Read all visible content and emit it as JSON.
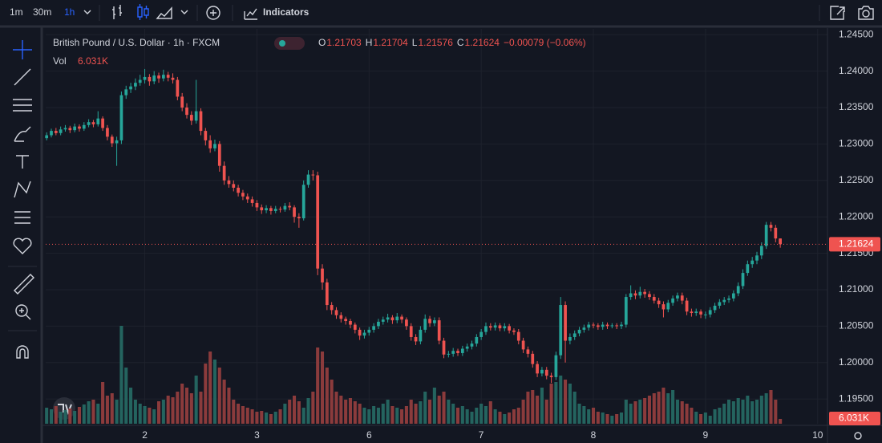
{
  "toolbar": {
    "intervals": [
      "1m",
      "30m",
      "1h"
    ],
    "indicators": "Indicators"
  },
  "chart_data": {
    "type": "candlestick",
    "title": "British Pound / U.S. Dollar · 1h · FXCM",
    "vol_label": "Vol",
    "volume_label": "6.031K",
    "ohlc_labels": [
      "O",
      "H",
      "L",
      "C"
    ],
    "change_label": "−0.00079 (−0.06%)",
    "up_color": "#26a69a",
    "down_color": "#ef5350",
    "volume_up_color": "#24645f",
    "volume_down_color": "#8b3b3c",
    "grid": true,
    "xlim": [
      -0.2,
      167.1
    ],
    "xticks": [
      {
        "value": 21,
        "label": "2"
      },
      {
        "value": 45,
        "label": "3"
      },
      {
        "value": 69,
        "label": "6"
      },
      {
        "value": 93,
        "label": "7"
      },
      {
        "value": 117,
        "label": "8"
      },
      {
        "value": 141,
        "label": "9"
      },
      {
        "value": 165,
        "label": "10"
      }
    ],
    "ylim": [
      1.1916,
      1.2458
    ],
    "yticks": [
      {
        "value": 1.245,
        "label": "1.24500"
      },
      {
        "value": 1.24,
        "label": "1.24000"
      },
      {
        "value": 1.235,
        "label": "1.23500"
      },
      {
        "value": 1.23,
        "label": "1.23000"
      },
      {
        "value": 1.225,
        "label": "1.22500"
      },
      {
        "value": 1.22,
        "label": "1.22000"
      },
      {
        "value": 1.215,
        "label": "1.21500"
      },
      {
        "value": 1.21,
        "label": "1.21000"
      },
      {
        "value": 1.205,
        "label": "1.20500"
      },
      {
        "value": 1.2,
        "label": "1.20000"
      },
      {
        "value": 1.195,
        "label": "1.19500"
      }
    ],
    "volume_ylim": [
      0,
      492000
    ],
    "candles": [
      [
        1.2308,
        1.2316,
        1.2305,
        1.2312
      ],
      [
        1.2312,
        1.2321,
        1.2309,
        1.2318
      ],
      [
        1.2318,
        1.2322,
        1.2312,
        1.2315
      ],
      [
        1.2315,
        1.2324,
        1.2312,
        1.232
      ],
      [
        1.232,
        1.2326,
        1.2317,
        1.2322
      ],
      [
        1.2322,
        1.2325,
        1.2315,
        1.2319
      ],
      [
        1.2319,
        1.2328,
        1.2316,
        1.2324
      ],
      [
        1.2324,
        1.2327,
        1.2317,
        1.2321
      ],
      [
        1.2321,
        1.233,
        1.2318,
        1.2326
      ],
      [
        1.2326,
        1.2334,
        1.2323,
        1.233
      ],
      [
        1.233,
        1.2333,
        1.2323,
        1.2327
      ],
      [
        1.2327,
        1.2345,
        1.2324,
        1.2335
      ],
      [
        1.2335,
        1.2338,
        1.2318,
        1.2322
      ],
      [
        1.2322,
        1.2326,
        1.2305,
        1.231
      ],
      [
        1.231,
        1.2313,
        1.2296,
        1.2301
      ],
      [
        1.2301,
        1.231,
        1.227,
        1.2305
      ],
      [
        1.2305,
        1.2372,
        1.23,
        1.2367
      ],
      [
        1.2367,
        1.238,
        1.2362,
        1.2375
      ],
      [
        1.2375,
        1.2384,
        1.237,
        1.2379
      ],
      [
        1.2379,
        1.239,
        1.2374,
        1.2384
      ],
      [
        1.2384,
        1.2395,
        1.238,
        1.2388
      ],
      [
        1.2388,
        1.2403,
        1.2383,
        1.2392
      ],
      [
        1.2392,
        1.2396,
        1.238,
        1.2386
      ],
      [
        1.2386,
        1.24,
        1.2382,
        1.2394
      ],
      [
        1.2394,
        1.2398,
        1.2384,
        1.239
      ],
      [
        1.239,
        1.2402,
        1.2386,
        1.2395
      ],
      [
        1.2395,
        1.2399,
        1.2386,
        1.2391
      ],
      [
        1.2391,
        1.2397,
        1.2383,
        1.2388
      ],
      [
        1.2388,
        1.2392,
        1.236,
        1.2365
      ],
      [
        1.2365,
        1.237,
        1.2345,
        1.235
      ],
      [
        1.235,
        1.2356,
        1.2335,
        1.234
      ],
      [
        1.234,
        1.2345,
        1.2326,
        1.2332
      ],
      [
        1.2332,
        1.2388,
        1.2328,
        1.2345
      ],
      [
        1.2345,
        1.2349,
        1.2312,
        1.2318
      ],
      [
        1.2318,
        1.2322,
        1.2298,
        1.2305
      ],
      [
        1.2305,
        1.2312,
        1.2288,
        1.2294
      ],
      [
        1.2294,
        1.2306,
        1.229,
        1.23
      ],
      [
        1.23,
        1.2304,
        1.2262,
        1.227
      ],
      [
        1.227,
        1.2276,
        1.2244,
        1.225
      ],
      [
        1.225,
        1.2256,
        1.224,
        1.2245
      ],
      [
        1.2245,
        1.225,
        1.2235,
        1.224
      ],
      [
        1.224,
        1.2244,
        1.2228,
        1.2233
      ],
      [
        1.2233,
        1.2237,
        1.2223,
        1.2228
      ],
      [
        1.2228,
        1.2232,
        1.2219,
        1.2224
      ],
      [
        1.2224,
        1.2228,
        1.2214,
        1.2219
      ],
      [
        1.2219,
        1.2223,
        1.2208,
        1.2213
      ],
      [
        1.2213,
        1.2217,
        1.2204,
        1.2209
      ],
      [
        1.2209,
        1.2216,
        1.2205,
        1.2212
      ],
      [
        1.2212,
        1.2215,
        1.2203,
        1.2208
      ],
      [
        1.2208,
        1.2215,
        1.2205,
        1.2211
      ],
      [
        1.2211,
        1.2214,
        1.2206,
        1.221
      ],
      [
        1.221,
        1.2219,
        1.2207,
        1.2215
      ],
      [
        1.2215,
        1.222,
        1.2209,
        1.2213
      ],
      [
        1.2213,
        1.2216,
        1.2192,
        1.22
      ],
      [
        1.22,
        1.2205,
        1.2185,
        1.2198
      ],
      [
        1.2198,
        1.225,
        1.2195,
        1.2244
      ],
      [
        1.2244,
        1.2264,
        1.224,
        1.2258
      ],
      [
        1.2258,
        1.2264,
        1.225,
        1.2257
      ],
      [
        1.2257,
        1.2262,
        1.212,
        1.2129
      ],
      [
        1.2129,
        1.2135,
        1.21,
        1.211
      ],
      [
        1.211,
        1.2115,
        1.2072,
        1.2079
      ],
      [
        1.2079,
        1.2083,
        1.2066,
        1.2072
      ],
      [
        1.2072,
        1.2076,
        1.206,
        1.2065
      ],
      [
        1.2065,
        1.2069,
        1.2055,
        1.206
      ],
      [
        1.206,
        1.2063,
        1.2052,
        1.2057
      ],
      [
        1.2057,
        1.206,
        1.2047,
        1.2052
      ],
      [
        1.2052,
        1.2055,
        1.204,
        1.2045
      ],
      [
        1.2045,
        1.2048,
        1.2031,
        1.2037
      ],
      [
        1.2037,
        1.2045,
        1.2033,
        1.2041
      ],
      [
        1.2041,
        1.2049,
        1.2037,
        1.2045
      ],
      [
        1.2045,
        1.2054,
        1.2041,
        1.205
      ],
      [
        1.205,
        1.206,
        1.2046,
        1.2056
      ],
      [
        1.2056,
        1.2063,
        1.2052,
        1.2059
      ],
      [
        1.2059,
        1.2067,
        1.2055,
        1.2062
      ],
      [
        1.2062,
        1.2065,
        1.2053,
        1.2058
      ],
      [
        1.2058,
        1.2068,
        1.2054,
        1.2063
      ],
      [
        1.2063,
        1.2066,
        1.2054,
        1.2059
      ],
      [
        1.2059,
        1.2062,
        1.2045,
        1.205
      ],
      [
        1.205,
        1.2054,
        1.203,
        1.2035
      ],
      [
        1.2035,
        1.2039,
        1.2024,
        1.2029
      ],
      [
        1.2029,
        1.205,
        1.2025,
        1.2045
      ],
      [
        1.2045,
        1.2066,
        1.2041,
        1.206
      ],
      [
        1.206,
        1.2064,
        1.2049,
        1.2054
      ],
      [
        1.2054,
        1.2062,
        1.205,
        1.2058
      ],
      [
        1.2058,
        1.2062,
        1.2025,
        1.203
      ],
      [
        1.203,
        1.2034,
        1.2006,
        1.2011
      ],
      [
        1.2011,
        1.2016,
        1.2007,
        1.2012
      ],
      [
        1.2012,
        1.202,
        1.2008,
        1.2016
      ],
      [
        1.2016,
        1.2019,
        1.2009,
        1.2013
      ],
      [
        1.2013,
        1.2023,
        1.2009,
        1.2019
      ],
      [
        1.2019,
        1.2026,
        1.2015,
        1.2022
      ],
      [
        1.2022,
        1.203,
        1.2018,
        1.2026
      ],
      [
        1.2026,
        1.2039,
        1.2022,
        1.2035
      ],
      [
        1.2035,
        1.2046,
        1.2031,
        1.2042
      ],
      [
        1.2042,
        1.2055,
        1.2038,
        1.205
      ],
      [
        1.205,
        1.2054,
        1.2044,
        1.2048
      ],
      [
        1.2048,
        1.2055,
        1.2044,
        1.2051
      ],
      [
        1.2051,
        1.2054,
        1.2043,
        1.2047
      ],
      [
        1.2047,
        1.2054,
        1.2043,
        1.205
      ],
      [
        1.205,
        1.2053,
        1.204,
        1.2044
      ],
      [
        1.2044,
        1.2047,
        1.2038,
        1.2042
      ],
      [
        1.2042,
        1.2046,
        1.2025,
        1.203
      ],
      [
        1.203,
        1.2034,
        1.2013,
        1.2018
      ],
      [
        1.2018,
        1.2022,
        1.2007,
        1.2012
      ],
      [
        1.2012,
        1.2016,
        1.1993,
        1.1998
      ],
      [
        1.1998,
        1.2002,
        1.198,
        1.1985
      ],
      [
        1.1985,
        1.1994,
        1.1981,
        1.199
      ],
      [
        1.199,
        1.1994,
        1.1977,
        1.1982
      ],
      [
        1.1982,
        1.1986,
        1.1972,
        1.198
      ],
      [
        1.198,
        1.2015,
        1.1976,
        1.201
      ],
      [
        1.201,
        1.209,
        1.2005,
        1.2079
      ],
      [
        1.2079,
        1.2084,
        1.2,
        1.203
      ],
      [
        1.203,
        1.204,
        1.2025,
        1.2035
      ],
      [
        1.2035,
        1.2044,
        1.2031,
        1.204
      ],
      [
        1.204,
        1.2049,
        1.2036,
        1.2045
      ],
      [
        1.2045,
        1.2052,
        1.2041,
        1.2048
      ],
      [
        1.2048,
        1.2056,
        1.2044,
        1.2052
      ],
      [
        1.2052,
        1.2055,
        1.2047,
        1.2051
      ],
      [
        1.2051,
        1.2054,
        1.2045,
        1.2049
      ],
      [
        1.2049,
        1.2056,
        1.2045,
        1.2052
      ],
      [
        1.2052,
        1.2055,
        1.2046,
        1.205
      ],
      [
        1.205,
        1.2054,
        1.2047,
        1.2051
      ],
      [
        1.2051,
        1.2054,
        1.2046,
        1.205
      ],
      [
        1.205,
        1.2056,
        1.2046,
        1.2052
      ],
      [
        1.2052,
        1.2094,
        1.2048,
        1.209
      ],
      [
        1.209,
        1.2106,
        1.2086,
        1.2095
      ],
      [
        1.2095,
        1.2099,
        1.2087,
        1.2092
      ],
      [
        1.2092,
        1.2104,
        1.2088,
        1.2097
      ],
      [
        1.2097,
        1.2101,
        1.2089,
        1.2094
      ],
      [
        1.2094,
        1.2098,
        1.2086,
        1.209
      ],
      [
        1.209,
        1.2094,
        1.2081,
        1.2085
      ],
      [
        1.2085,
        1.2089,
        1.2075,
        1.208
      ],
      [
        1.208,
        1.2084,
        1.2062,
        1.2073
      ],
      [
        1.2073,
        1.2086,
        1.2069,
        1.2082
      ],
      [
        1.2082,
        1.2092,
        1.2078,
        1.2088
      ],
      [
        1.2088,
        1.2096,
        1.2084,
        1.2092
      ],
      [
        1.2092,
        1.2096,
        1.208,
        1.2085
      ],
      [
        1.2085,
        1.2089,
        1.2065,
        1.207
      ],
      [
        1.207,
        1.2074,
        1.2063,
        1.2068
      ],
      [
        1.2068,
        1.2074,
        1.2064,
        1.207
      ],
      [
        1.207,
        1.2073,
        1.2061,
        1.2066
      ],
      [
        1.2066,
        1.207,
        1.206,
        1.2066
      ],
      [
        1.2066,
        1.2076,
        1.2062,
        1.2072
      ],
      [
        1.2072,
        1.2082,
        1.2068,
        1.2078
      ],
      [
        1.2078,
        1.2087,
        1.2074,
        1.2083
      ],
      [
        1.2083,
        1.209,
        1.2079,
        1.2086
      ],
      [
        1.2086,
        1.2092,
        1.2082,
        1.2088
      ],
      [
        1.2088,
        1.2099,
        1.2084,
        1.2095
      ],
      [
        1.2095,
        1.211,
        1.2091,
        1.2105
      ],
      [
        1.2105,
        1.2128,
        1.2101,
        1.2123
      ],
      [
        1.2123,
        1.214,
        1.2119,
        1.2135
      ],
      [
        1.2135,
        1.2145,
        1.213,
        1.214
      ],
      [
        1.214,
        1.2152,
        1.2135,
        1.2147
      ],
      [
        1.2147,
        1.2165,
        1.2142,
        1.216
      ],
      [
        1.216,
        1.2193,
        1.2156,
        1.2189
      ],
      [
        1.2189,
        1.2193,
        1.218,
        1.2185
      ],
      [
        1.2185,
        1.2189,
        1.2165,
        1.21703
      ],
      [
        1.21703,
        1.21704,
        1.21576,
        1.21624
      ]
    ],
    "volumes": [
      20000,
      18000,
      22000,
      15000,
      17000,
      19000,
      16000,
      21000,
      24000,
      28000,
      30000,
      25000,
      52000,
      35000,
      38000,
      30000,
      122000,
      70000,
      45000,
      30000,
      25000,
      22000,
      20000,
      18000,
      28000,
      30000,
      35000,
      33000,
      40000,
      50000,
      45000,
      38000,
      60000,
      40000,
      75000,
      90000,
      80000,
      70000,
      55000,
      45000,
      30000,
      25000,
      22000,
      20000,
      18000,
      15000,
      16000,
      14000,
      12000,
      15000,
      18000,
      25000,
      30000,
      35000,
      28000,
      20000,
      32000,
      40000,
      95000,
      90000,
      70000,
      55000,
      40000,
      35000,
      30000,
      32000,
      28000,
      25000,
      20000,
      18000,
      22000,
      20000,
      25000,
      30000,
      22000,
      20000,
      18000,
      22000,
      30000,
      25000,
      28000,
      40000,
      30000,
      45000,
      35000,
      40000,
      30000,
      25000,
      20000,
      22000,
      18000,
      15000,
      20000,
      25000,
      22000,
      28000,
      18000,
      15000,
      12000,
      14000,
      18000,
      20000,
      30000,
      40000,
      42000,
      35000,
      45000,
      30000,
      50000,
      52000,
      60000,
      55000,
      50000,
      40000,
      25000,
      22000,
      18000,
      20000,
      15000,
      14000,
      12000,
      10000,
      12000,
      14000,
      30000,
      25000,
      28000,
      30000,
      32000,
      35000,
      38000,
      40000,
      45000,
      38000,
      42000,
      30000,
      28000,
      25000,
      20000,
      15000,
      12000,
      14000,
      10000,
      18000,
      20000,
      25000,
      30000,
      28000,
      32000,
      30000,
      35000,
      28000,
      30000,
      35000,
      38000,
      42000,
      30000,
      6031
    ]
  }
}
